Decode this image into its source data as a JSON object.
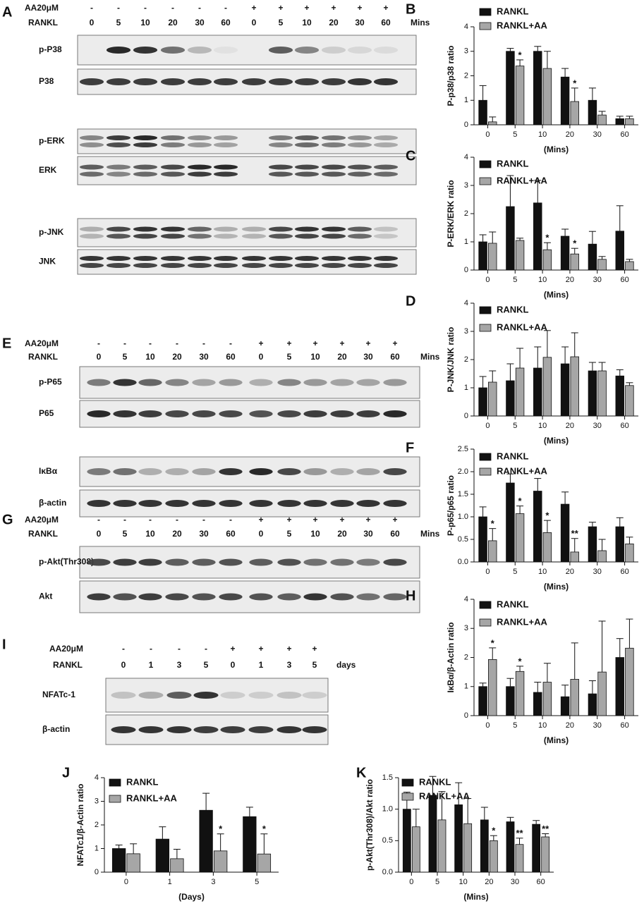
{
  "chart_data": [
    {
      "type": "bar",
      "panel": "B",
      "ylabel": "P-p38/p38 ratio",
      "xlabel": "(Mins)",
      "categories": [
        "0",
        "5",
        "10",
        "20",
        "30",
        "60"
      ],
      "ylim": [
        0,
        4
      ],
      "yticks": [
        0,
        1,
        2,
        3,
        4
      ],
      "series": [
        {
          "name": "RANKL",
          "color": "#111111",
          "values": [
            1.0,
            3.0,
            3.0,
            1.95,
            1.0,
            0.25
          ],
          "errors": [
            0.6,
            0.12,
            0.2,
            0.35,
            0.5,
            0.1
          ],
          "significance": [
            null,
            null,
            null,
            null,
            null,
            null
          ]
        },
        {
          "name": "RANKL+AA",
          "color": "#a6a6a6",
          "values": [
            0.12,
            2.4,
            2.3,
            0.95,
            0.4,
            0.25
          ],
          "errors": [
            0.2,
            0.25,
            0.7,
            0.55,
            0.15,
            0.1
          ],
          "significance": [
            null,
            "*",
            null,
            "*",
            null,
            null
          ]
        }
      ]
    },
    {
      "type": "bar",
      "panel": "C",
      "ylabel": "P-ERK/ERK ratio",
      "xlabel": "(Mins)",
      "categories": [
        "0",
        "5",
        "10",
        "20",
        "30",
        "60"
      ],
      "ylim": [
        0,
        4
      ],
      "yticks": [
        0,
        1,
        2,
        3,
        4
      ],
      "series": [
        {
          "name": "RANKL",
          "color": "#111111",
          "values": [
            1.0,
            2.25,
            2.38,
            1.2,
            0.92,
            1.38
          ],
          "errors": [
            0.25,
            1.1,
            0.8,
            0.25,
            0.45,
            0.9
          ],
          "significance": [
            null,
            null,
            null,
            null,
            null,
            null
          ]
        },
        {
          "name": "RANKL+AA",
          "color": "#a6a6a6",
          "values": [
            0.95,
            1.05,
            0.72,
            0.57,
            0.38,
            0.3
          ],
          "errors": [
            0.4,
            0.08,
            0.25,
            0.2,
            0.1,
            0.08
          ],
          "significance": [
            null,
            null,
            "*",
            "*",
            null,
            null
          ]
        }
      ]
    },
    {
      "type": "bar",
      "panel": "D",
      "ylabel": "P-JNK/JNK ratio",
      "xlabel": "(Mins)",
      "categories": [
        "0",
        "5",
        "10",
        "20",
        "30",
        "60"
      ],
      "ylim": [
        0,
        4
      ],
      "yticks": [
        0,
        1,
        2,
        3,
        4
      ],
      "series": [
        {
          "name": "RANKL",
          "color": "#111111",
          "values": [
            1.0,
            1.25,
            1.7,
            1.85,
            1.6,
            1.42
          ],
          "errors": [
            0.4,
            0.6,
            0.75,
            0.6,
            0.3,
            0.22
          ],
          "significance": [
            null,
            null,
            null,
            null,
            null,
            null
          ]
        },
        {
          "name": "RANKL+AA",
          "color": "#a6a6a6",
          "values": [
            1.2,
            1.7,
            2.08,
            2.1,
            1.6,
            1.08
          ],
          "errors": [
            0.4,
            0.7,
            0.95,
            0.85,
            0.3,
            0.1
          ],
          "significance": [
            null,
            null,
            null,
            null,
            null,
            null
          ]
        }
      ]
    },
    {
      "type": "bar",
      "panel": "F",
      "ylabel": "P-p65/p65 ratio",
      "xlabel": "(Mins)",
      "categories": [
        "0",
        "5",
        "10",
        "20",
        "30",
        "60"
      ],
      "ylim": [
        0,
        2.5
      ],
      "yticks": [
        {
          "value": 0,
          "label": "0.0"
        },
        0.5,
        {
          "value": 1,
          "label": "1.0"
        },
        1.5,
        {
          "value": 2,
          "label": "2.0"
        },
        2.5
      ],
      "series": [
        {
          "name": "RANKL",
          "color": "#111111",
          "values": [
            1.0,
            1.75,
            1.57,
            1.28,
            0.78,
            0.78
          ],
          "errors": [
            0.22,
            0.2,
            0.28,
            0.27,
            0.1,
            0.2
          ],
          "significance": [
            null,
            null,
            null,
            null,
            null,
            null
          ]
        },
        {
          "name": "RANKL+AA",
          "color": "#a6a6a6",
          "values": [
            0.47,
            1.07,
            0.65,
            0.22,
            0.25,
            0.4
          ],
          "errors": [
            0.27,
            0.17,
            0.27,
            0.3,
            0.25,
            0.15
          ],
          "significance": [
            "*",
            "*",
            "*",
            "**",
            null,
            null
          ]
        }
      ]
    },
    {
      "type": "bar",
      "panel": "H",
      "ylabel": "IκBα/β-Actin ratio",
      "xlabel": "(Mins)",
      "categories": [
        "0",
        "5",
        "10",
        "20",
        "30",
        "60"
      ],
      "ylim": [
        0,
        4
      ],
      "yticks": [
        0,
        1,
        2,
        3,
        4
      ],
      "series": [
        {
          "name": "RANKL",
          "color": "#111111",
          "values": [
            1.0,
            1.0,
            0.8,
            0.65,
            0.75,
            2.0
          ],
          "errors": [
            0.12,
            0.28,
            0.35,
            0.4,
            0.45,
            0.65
          ],
          "significance": [
            null,
            null,
            null,
            null,
            null,
            null
          ]
        },
        {
          "name": "RANKL+AA",
          "color": "#a6a6a6",
          "values": [
            1.93,
            1.52,
            1.15,
            1.25,
            1.5,
            2.32
          ],
          "errors": [
            0.4,
            0.18,
            0.65,
            1.25,
            1.75,
            1.0
          ],
          "significance": [
            "*",
            "*",
            null,
            null,
            null,
            null
          ]
        }
      ]
    },
    {
      "type": "bar",
      "panel": "J",
      "ylabel": "NFATc1/β-Actin ratio",
      "xlabel": "(Days)",
      "categories": [
        "0",
        "1",
        "3",
        "5"
      ],
      "ylim": [
        0,
        4
      ],
      "yticks": [
        0,
        1,
        2,
        3,
        4
      ],
      "series": [
        {
          "name": "RANKL",
          "color": "#111111",
          "values": [
            1.0,
            1.4,
            2.62,
            2.35
          ],
          "errors": [
            0.15,
            0.52,
            0.72,
            0.4
          ],
          "significance": [
            null,
            null,
            null,
            null
          ]
        },
        {
          "name": "RANKL+AA",
          "color": "#a6a6a6",
          "values": [
            0.78,
            0.57,
            0.9,
            0.77
          ],
          "errors": [
            0.42,
            0.4,
            0.72,
            0.85
          ],
          "significance": [
            null,
            null,
            "*",
            "*"
          ]
        }
      ]
    },
    {
      "type": "bar",
      "panel": "K",
      "ylabel": "p-Akt(Thr308)/Akt ratio",
      "xlabel": "(Mins)",
      "categories": [
        "0",
        "5",
        "10",
        "20",
        "30",
        "60"
      ],
      "ylim": [
        0,
        1.5
      ],
      "yticks": [
        {
          "value": 0,
          "label": "0.0"
        },
        0.5,
        {
          "value": 1,
          "label": "1.0"
        },
        1.5
      ],
      "series": [
        {
          "name": "RANKL",
          "color": "#111111",
          "values": [
            1.0,
            1.22,
            1.07,
            0.83,
            0.8,
            0.76
          ],
          "errors": [
            0.27,
            0.3,
            0.35,
            0.2,
            0.07,
            0.06
          ],
          "significance": [
            null,
            null,
            null,
            null,
            null,
            null
          ]
        },
        {
          "name": "RANKL+AA",
          "color": "#a6a6a6",
          "values": [
            0.72,
            0.83,
            0.77,
            0.5,
            0.44,
            0.56
          ],
          "errors": [
            0.28,
            0.45,
            0.4,
            0.08,
            0.1,
            0.05
          ],
          "significance": [
            null,
            null,
            null,
            "*",
            "**",
            "**"
          ]
        }
      ]
    }
  ],
  "blots": [
    {
      "panel": "A",
      "headers": [
        {
          "label": "AA20μM",
          "lanes": [
            "-",
            "-",
            "-",
            "-",
            "-",
            "-",
            "+",
            "+",
            "+",
            "+",
            "+",
            "+"
          ]
        },
        {
          "label": "RANKL",
          "lanes": [
            "0",
            "5",
            "10",
            "20",
            "30",
            "60",
            "0",
            "5",
            "10",
            "20",
            "30",
            "60"
          ],
          "unit": "Mins"
        }
      ],
      "rows": [
        "p-P38",
        "P38",
        "p-ERK",
        "ERK",
        "p-JNK",
        "JNK"
      ]
    },
    {
      "panel": "E",
      "headers": [
        {
          "label": "AA20μM",
          "lanes": [
            "-",
            "-",
            "-",
            "-",
            "-",
            "-",
            "+",
            "+",
            "+",
            "+",
            "+",
            "+"
          ]
        },
        {
          "label": "RANKL",
          "lanes": [
            "0",
            "5",
            "10",
            "20",
            "30",
            "60",
            "0",
            "5",
            "10",
            "20",
            "30",
            "60"
          ],
          "unit": "Mins"
        }
      ],
      "rows": [
        "p-P65",
        "P65",
        "IκBα",
        "β-actin"
      ]
    },
    {
      "panel": "G",
      "headers": [
        {
          "label": "AA20μM",
          "lanes": [
            "-",
            "-",
            "-",
            "-",
            "-",
            "-",
            "+",
            "+",
            "+",
            "+",
            "+",
            "+"
          ]
        },
        {
          "label": "RANKL",
          "lanes": [
            "0",
            "5",
            "10",
            "20",
            "30",
            "60",
            "0",
            "5",
            "10",
            "20",
            "30",
            "60"
          ],
          "unit": "Mins"
        }
      ],
      "rows": [
        "p-Akt(Thr308)",
        "Akt"
      ]
    },
    {
      "panel": "I",
      "headers": [
        {
          "label": "AA20μM",
          "lanes": [
            "-",
            "-",
            "-",
            "-",
            "+",
            "+",
            "+",
            "+"
          ]
        },
        {
          "label": "RANKL",
          "lanes": [
            "0",
            "1",
            "3",
            "5",
            "0",
            "1",
            "3",
            "5"
          ],
          "unit": "days"
        }
      ],
      "rows": [
        "NFATc-1",
        "β-actin"
      ]
    }
  ]
}
